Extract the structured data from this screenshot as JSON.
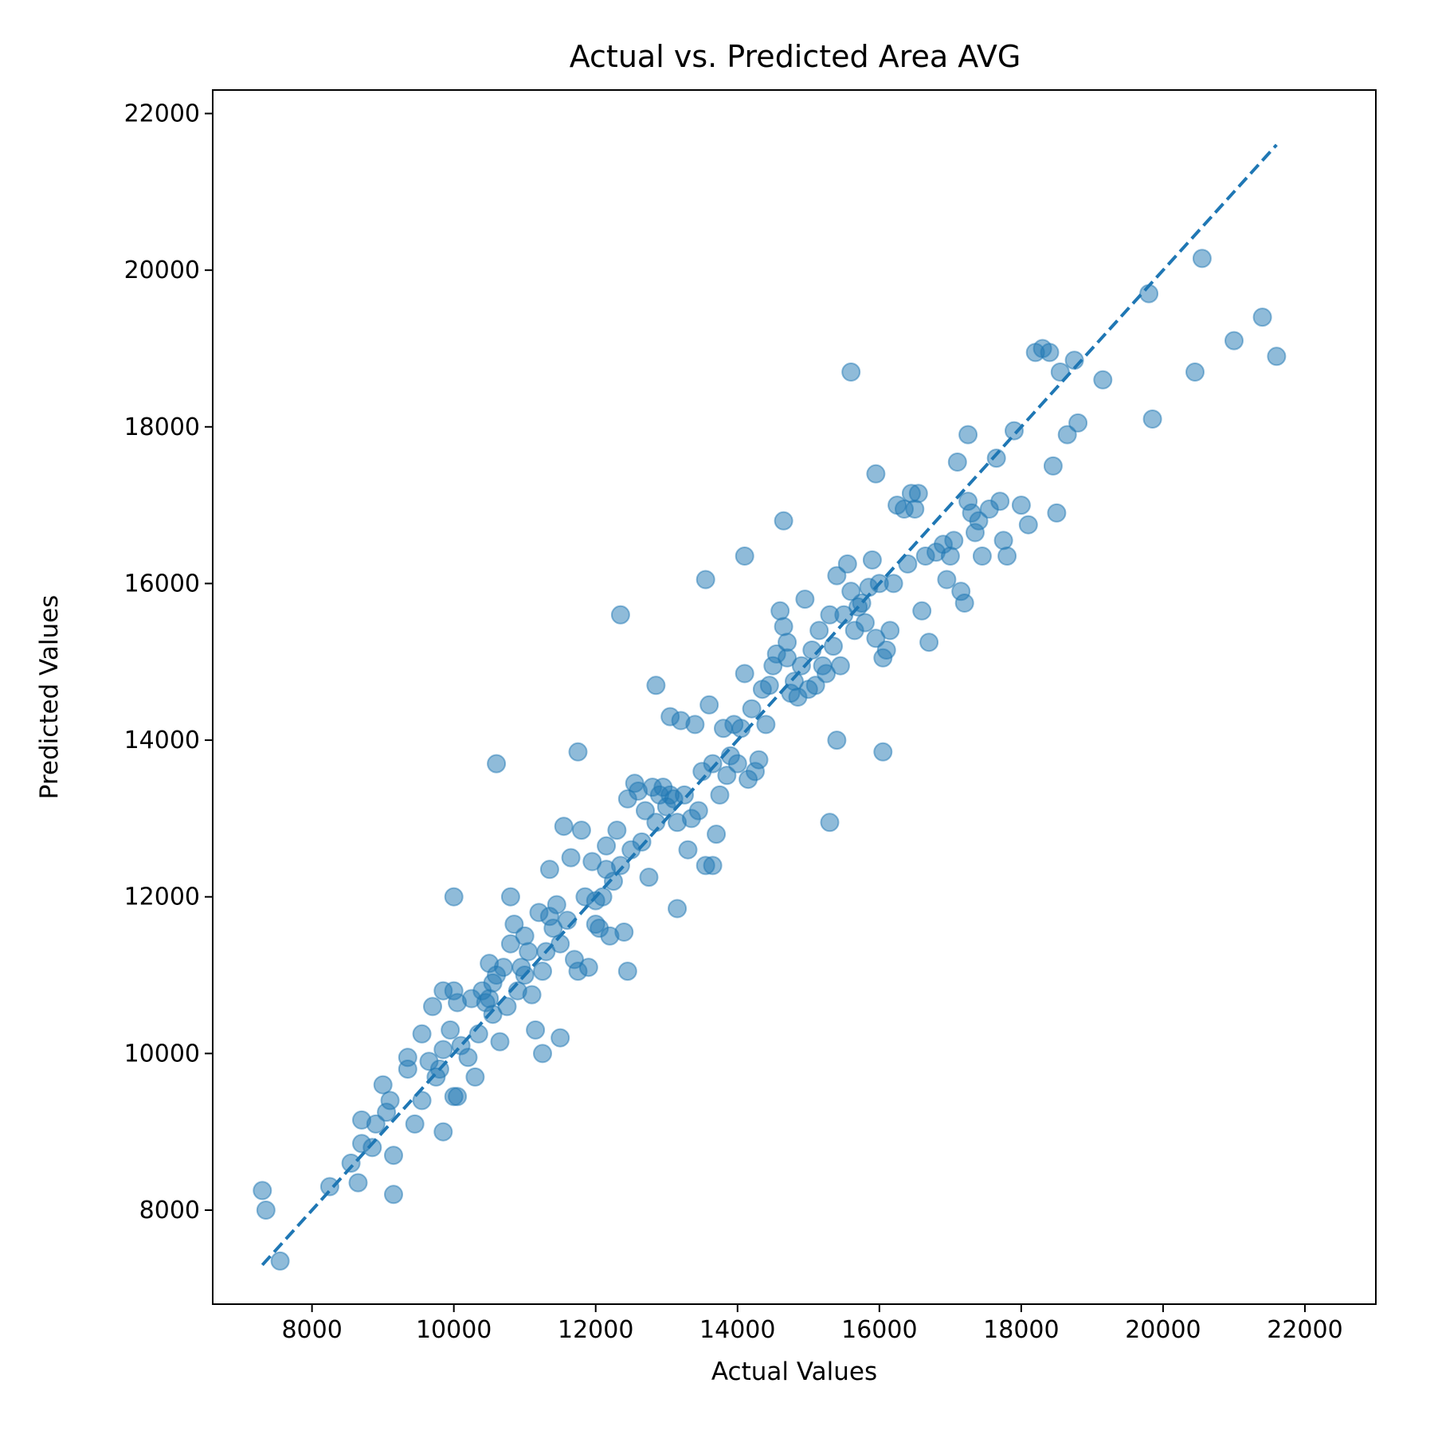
{
  "chart_data": {
    "type": "scatter",
    "title": "Actual vs. Predicted Area AVG",
    "xlabel": "Actual Values",
    "ylabel": "Predicted Values",
    "xlim": [
      6600,
      23000
    ],
    "ylim": [
      6800,
      22300
    ],
    "xticks": [
      8000,
      10000,
      12000,
      14000,
      16000,
      18000,
      20000,
      22000
    ],
    "yticks": [
      8000,
      10000,
      12000,
      14000,
      16000,
      18000,
      20000,
      22000
    ],
    "grid": false,
    "legend": "none",
    "point_color": "#1f77b4",
    "reference_line": {
      "style": "dashed",
      "color": "#1f77b4",
      "x": [
        7300,
        21600
      ],
      "y": [
        7300,
        21600
      ]
    },
    "series": [
      {
        "x": [
          7300,
          7350,
          7550,
          8250,
          8550,
          8650,
          8700,
          8700,
          8850,
          8900,
          9000,
          9050,
          9100,
          9150,
          9350,
          9350,
          9450,
          9550,
          9550,
          9650,
          9700,
          9750,
          9800,
          9850,
          9850,
          9950,
          10000,
          10000,
          10050,
          10100,
          10200,
          10250,
          10300,
          10350,
          10400,
          10450,
          10500,
          10500,
          10550,
          10550,
          10600,
          10650,
          10700,
          10750,
          10800,
          10800,
          10850,
          10900,
          10950,
          11000,
          11000,
          11050,
          11100,
          11150,
          11200,
          11250,
          11300,
          11350,
          11350,
          11400,
          11450,
          11500,
          11550,
          11600,
          11650,
          11700,
          11750,
          11800,
          11850,
          11900,
          11950,
          12000,
          12050,
          12100,
          12150,
          12200,
          12250,
          12300,
          12350,
          12400,
          12450,
          12500,
          12550,
          12600,
          12650,
          12700,
          12750,
          12800,
          12850,
          12900,
          12950,
          13000,
          13050,
          13100,
          13150,
          13200,
          13250,
          13300,
          13350,
          13400,
          13450,
          13500,
          13550,
          13600,
          13650,
          13700,
          13750,
          13800,
          13850,
          13900,
          13950,
          14000,
          14050,
          14100,
          14150,
          14200,
          14250,
          14300,
          14350,
          14400,
          14450,
          14500,
          14550,
          14600,
          14650,
          14700,
          14750,
          14800,
          14850,
          14900,
          14950,
          15000,
          15050,
          15100,
          15150,
          15200,
          15250,
          15300,
          15350,
          15400,
          15450,
          15500,
          15550,
          15600,
          15650,
          15700,
          15750,
          15800,
          15850,
          15900,
          15950,
          16000,
          16050,
          16100,
          16200,
          16350,
          16400,
          16450,
          16500,
          16600,
          16650,
          16700,
          16800,
          16900,
          16950,
          17000,
          17050,
          17100,
          17150,
          17200,
          17250,
          17300,
          17350,
          17400,
          17450,
          17550,
          17650,
          17700,
          17750,
          17800,
          17900,
          18000,
          18100,
          18200,
          18300,
          18400,
          18450,
          18500,
          18550,
          18650,
          18750,
          18800,
          19150,
          19800,
          19850,
          20450,
          20550,
          21000,
          21400,
          21600,
          10600,
          12350,
          13550,
          14700,
          15600,
          14100,
          10000,
          11750,
          12450,
          15300,
          16050,
          13050,
          12850,
          11500,
          9150,
          9850,
          10050,
          11250,
          12150,
          13150,
          12000,
          13650,
          15400,
          14650,
          16550,
          16250,
          17250,
          16150,
          15950
        ],
        "y": [
          8250,
          8000,
          7350,
          8300,
          8600,
          8350,
          8850,
          9150,
          8800,
          9100,
          9600,
          9250,
          9400,
          8200,
          9950,
          9800,
          9100,
          9400,
          10250,
          9900,
          10600,
          9700,
          9800,
          10050,
          10800,
          10300,
          12000,
          9450,
          10650,
          10100,
          9950,
          10700,
          9700,
          10250,
          10800,
          10650,
          10700,
          11150,
          10500,
          10900,
          11000,
          10150,
          11100,
          10600,
          12000,
          11400,
          11650,
          10800,
          11100,
          11000,
          11500,
          11300,
          10750,
          10300,
          11800,
          11050,
          11300,
          12350,
          11750,
          11600,
          11900,
          11400,
          12900,
          11700,
          12500,
          11200,
          13850,
          12850,
          12000,
          11100,
          12450,
          11650,
          11600,
          12000,
          12650,
          11500,
          12200,
          12850,
          12400,
          11550,
          13250,
          12600,
          13450,
          13350,
          12700,
          13100,
          12250,
          13400,
          12950,
          13300,
          13400,
          13150,
          13300,
          13250,
          12950,
          14250,
          13300,
          12600,
          13000,
          14200,
          13100,
          13600,
          12400,
          14450,
          13700,
          12800,
          13300,
          14150,
          13550,
          13800,
          14200,
          13700,
          14150,
          14850,
          13500,
          14400,
          13600,
          13750,
          14650,
          14200,
          14700,
          14950,
          15100,
          15650,
          15450,
          15050,
          14600,
          14750,
          14550,
          14950,
          15800,
          14650,
          15150,
          14700,
          15400,
          14950,
          14850,
          15600,
          15200,
          16100,
          14950,
          15600,
          16250,
          15900,
          15400,
          15700,
          15750,
          15500,
          15950,
          16300,
          15300,
          16000,
          15050,
          15150,
          16000,
          16950,
          16250,
          17150,
          16950,
          15650,
          16350,
          15250,
          16400,
          16500,
          16050,
          16350,
          16550,
          17550,
          15900,
          15750,
          17050,
          16900,
          16650,
          16800,
          16350,
          16950,
          17600,
          17050,
          16550,
          16350,
          17950,
          17000,
          16750,
          18950,
          19000,
          18950,
          17500,
          16900,
          18700,
          17900,
          18850,
          18050,
          18600,
          19700,
          18100,
          18700,
          20150,
          19100,
          19400,
          18900,
          13700,
          15600,
          16050,
          15250,
          18700,
          16350,
          10800,
          11050,
          11050,
          12950,
          13850,
          14300,
          14700,
          10200,
          8700,
          9000,
          9450,
          10000,
          12350,
          11850,
          11950,
          12400,
          14000,
          16800,
          17150,
          17000,
          17900,
          15400,
          17400
        ]
      }
    ]
  }
}
